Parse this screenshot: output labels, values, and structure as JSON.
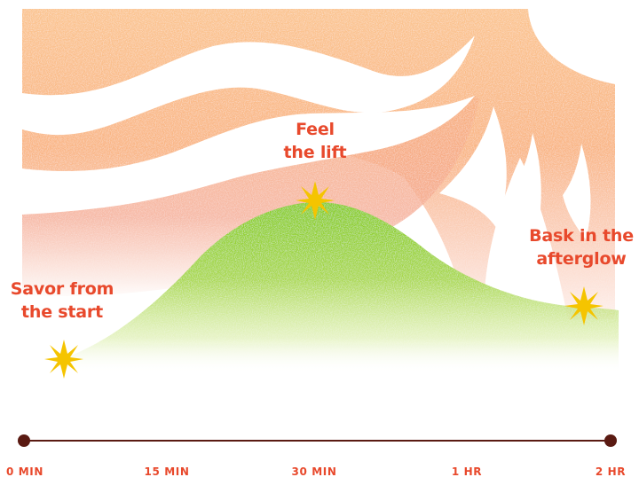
{
  "labels": {
    "start": {
      "line1": "Savor from",
      "line2": "the start"
    },
    "peak": {
      "line1": "Feel",
      "line2": "the lift"
    },
    "end": {
      "line1": "Bask in the",
      "line2": "afterglow"
    }
  },
  "timeline": {
    "ticks": [
      "0 MIN",
      "15 MIN",
      "30 MIN",
      "1 HR",
      "2 HR"
    ]
  },
  "colors": {
    "label_text": "#e8492c",
    "timeline": "#5a1a12",
    "curve_green": "#8fd12a",
    "sky_orange": "#f8b27a",
    "sky_peach": "#f4a48a",
    "starburst": "#f5c400"
  },
  "icons": {
    "start_marker": "starburst-icon",
    "peak_marker": "starburst-icon",
    "end_marker": "starburst-icon"
  }
}
